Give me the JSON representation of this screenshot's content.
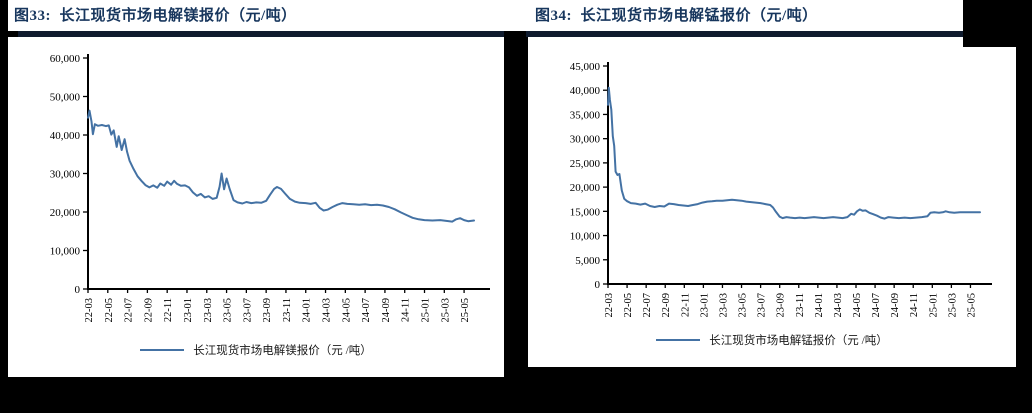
{
  "page": {
    "background_color": "#000000",
    "panel_color": "#ffffff",
    "title_color": "#17365d",
    "rule_color": "#0f1b2e",
    "axis_color": "#000000"
  },
  "chart_data": [
    {
      "type": "line",
      "title": "图33:  长江现货市场电解镁报价（元/吨）",
      "legend": "长江现货市场电解镁报价（元 /吨）",
      "xlabel": "",
      "ylabel": "",
      "ylim": [
        0,
        60000
      ],
      "ytick_step": 10000,
      "ytick_labels": [
        "0",
        "10,000",
        "20,000",
        "30,000",
        "40,000",
        "50,000",
        "60,000"
      ],
      "x_tick_labels": [
        "22-03",
        "22-05",
        "22-07",
        "22-09",
        "22-11",
        "23-01",
        "23-03",
        "23-05",
        "23-07",
        "23-09",
        "23-11",
        "24-01",
        "24-03",
        "24-05",
        "24-07",
        "24-09",
        "24-11",
        "25-01",
        "25-03",
        "25-05"
      ],
      "months_per_tick": 2,
      "x_range_months": [
        0,
        39
      ],
      "grid": false,
      "legend_position": "bottom-center",
      "line_color": "#4472a4",
      "points": [
        [
          0,
          44500
        ],
        [
          0.15,
          46300
        ],
        [
          0.35,
          43500
        ],
        [
          0.5,
          40200
        ],
        [
          0.7,
          42800
        ],
        [
          1,
          42400
        ],
        [
          1.4,
          42600
        ],
        [
          1.8,
          42300
        ],
        [
          2.1,
          42500
        ],
        [
          2.35,
          40100
        ],
        [
          2.6,
          41200
        ],
        [
          2.9,
          36900
        ],
        [
          3.1,
          39700
        ],
        [
          3.4,
          36100
        ],
        [
          3.7,
          38900
        ],
        [
          3.95,
          35600
        ],
        [
          4.2,
          33300
        ],
        [
          4.6,
          31200
        ],
        [
          5,
          29300
        ],
        [
          5.4,
          28100
        ],
        [
          5.8,
          27000
        ],
        [
          6.2,
          26400
        ],
        [
          6.6,
          26900
        ],
        [
          7,
          26300
        ],
        [
          7.3,
          27400
        ],
        [
          7.7,
          26800
        ],
        [
          8,
          27900
        ],
        [
          8.4,
          27100
        ],
        [
          8.7,
          28100
        ],
        [
          9,
          27300
        ],
        [
          9.4,
          26800
        ],
        [
          9.8,
          26900
        ],
        [
          10.2,
          26400
        ],
        [
          10.6,
          25100
        ],
        [
          11,
          24200
        ],
        [
          11.4,
          24700
        ],
        [
          11.8,
          23800
        ],
        [
          12.2,
          24100
        ],
        [
          12.6,
          23400
        ],
        [
          13,
          23700
        ],
        [
          13.3,
          26600
        ],
        [
          13.5,
          30000
        ],
        [
          13.75,
          25900
        ],
        [
          14,
          28700
        ],
        [
          14.3,
          26100
        ],
        [
          14.7,
          23100
        ],
        [
          15.1,
          22500
        ],
        [
          15.6,
          22200
        ],
        [
          16,
          22600
        ],
        [
          16.5,
          22300
        ],
        [
          17,
          22500
        ],
        [
          17.5,
          22400
        ],
        [
          18,
          22900
        ],
        [
          18.4,
          24500
        ],
        [
          18.8,
          26000
        ],
        [
          19.1,
          26500
        ],
        [
          19.5,
          26000
        ],
        [
          19.9,
          24800
        ],
        [
          20.4,
          23400
        ],
        [
          20.9,
          22700
        ],
        [
          21.4,
          22400
        ],
        [
          22,
          22300
        ],
        [
          22.5,
          22100
        ],
        [
          23,
          22400
        ],
        [
          23.4,
          21100
        ],
        [
          23.8,
          20400
        ],
        [
          24.2,
          20600
        ],
        [
          24.7,
          21300
        ],
        [
          25.2,
          21900
        ],
        [
          25.7,
          22300
        ],
        [
          26.2,
          22100
        ],
        [
          26.8,
          22000
        ],
        [
          27.4,
          21900
        ],
        [
          28,
          22000
        ],
        [
          28.6,
          21800
        ],
        [
          29.2,
          21900
        ],
        [
          29.8,
          21700
        ],
        [
          30.4,
          21300
        ],
        [
          31,
          20700
        ],
        [
          31.6,
          19900
        ],
        [
          32.2,
          19200
        ],
        [
          32.8,
          18500
        ],
        [
          33.4,
          18100
        ],
        [
          34,
          17900
        ],
        [
          34.8,
          17800
        ],
        [
          35.6,
          17900
        ],
        [
          36.2,
          17700
        ],
        [
          36.8,
          17500
        ],
        [
          37.2,
          18100
        ],
        [
          37.6,
          18400
        ],
        [
          38,
          17900
        ],
        [
          38.4,
          17600
        ],
        [
          39,
          17800
        ]
      ]
    },
    {
      "type": "line",
      "title": "图34:  长江现货市场电解锰报价（元/吨）",
      "legend": "长江现货市场电解锰报价（元 /吨）",
      "xlabel": "",
      "ylabel": "",
      "ylim": [
        0,
        45000
      ],
      "ytick_step": 5000,
      "ytick_labels": [
        "0",
        "5,000",
        "10,000",
        "15,000",
        "20,000",
        "25,000",
        "30,000",
        "35,000",
        "40,000",
        "45,000"
      ],
      "x_tick_labels": [
        "22-03",
        "22-05",
        "22-07",
        "22-09",
        "22-11",
        "23-01",
        "23-03",
        "23-05",
        "23-07",
        "23-09",
        "23-11",
        "24-01",
        "24-03",
        "24-05",
        "24-07",
        "24-09",
        "24-11",
        "25-01",
        "25-03",
        "25-05"
      ],
      "months_per_tick": 2,
      "x_range_months": [
        0,
        39
      ],
      "grid": false,
      "legend_position": "bottom-center",
      "line_color": "#4472a4",
      "points": [
        [
          0,
          37000
        ],
        [
          0.08,
          40500
        ],
        [
          0.2,
          38000
        ],
        [
          0.35,
          36000
        ],
        [
          0.5,
          30500
        ],
        [
          0.65,
          28500
        ],
        [
          0.8,
          23200
        ],
        [
          1,
          22500
        ],
        [
          1.2,
          22700
        ],
        [
          1.45,
          19300
        ],
        [
          1.7,
          17600
        ],
        [
          2,
          17100
        ],
        [
          2.4,
          16700
        ],
        [
          2.9,
          16600
        ],
        [
          3.4,
          16400
        ],
        [
          3.9,
          16600
        ],
        [
          4.4,
          16100
        ],
        [
          4.9,
          15900
        ],
        [
          5.4,
          16100
        ],
        [
          5.9,
          16000
        ],
        [
          6.4,
          16600
        ],
        [
          6.9,
          16500
        ],
        [
          7.4,
          16300
        ],
        [
          7.9,
          16200
        ],
        [
          8.4,
          16100
        ],
        [
          8.9,
          16300
        ],
        [
          9.4,
          16500
        ],
        [
          9.9,
          16800
        ],
        [
          10.4,
          17000
        ],
        [
          10.9,
          17100
        ],
        [
          11.4,
          17200
        ],
        [
          12,
          17200
        ],
        [
          12.5,
          17300
        ],
        [
          13,
          17400
        ],
        [
          13.5,
          17300
        ],
        [
          14,
          17200
        ],
        [
          14.5,
          17000
        ],
        [
          15,
          16900
        ],
        [
          15.5,
          16800
        ],
        [
          16,
          16700
        ],
        [
          16.5,
          16500
        ],
        [
          17,
          16300
        ],
        [
          17.3,
          15800
        ],
        [
          17.6,
          14900
        ],
        [
          18,
          13900
        ],
        [
          18.3,
          13600
        ],
        [
          18.7,
          13800
        ],
        [
          19.1,
          13700
        ],
        [
          19.6,
          13600
        ],
        [
          20.1,
          13700
        ],
        [
          20.6,
          13600
        ],
        [
          21.1,
          13700
        ],
        [
          21.6,
          13800
        ],
        [
          22.1,
          13700
        ],
        [
          22.6,
          13600
        ],
        [
          23.1,
          13700
        ],
        [
          23.6,
          13800
        ],
        [
          24.1,
          13700
        ],
        [
          24.6,
          13600
        ],
        [
          25.1,
          13800
        ],
        [
          25.5,
          14500
        ],
        [
          25.8,
          14300
        ],
        [
          26.1,
          15000
        ],
        [
          26.4,
          15400
        ],
        [
          26.7,
          15100
        ],
        [
          27,
          15200
        ],
        [
          27.4,
          14700
        ],
        [
          27.8,
          14400
        ],
        [
          28.2,
          14100
        ],
        [
          28.6,
          13700
        ],
        [
          29,
          13500
        ],
        [
          29.4,
          13800
        ],
        [
          29.9,
          13700
        ],
        [
          30.5,
          13600
        ],
        [
          31.1,
          13700
        ],
        [
          31.7,
          13600
        ],
        [
          32.3,
          13700
        ],
        [
          32.9,
          13800
        ],
        [
          33.5,
          14000
        ],
        [
          33.8,
          14700
        ],
        [
          34.2,
          14800
        ],
        [
          34.7,
          14700
        ],
        [
          35.1,
          14800
        ],
        [
          35.4,
          15000
        ],
        [
          35.8,
          14800
        ],
        [
          36.3,
          14700
        ],
        [
          36.9,
          14800
        ],
        [
          37.5,
          14800
        ],
        [
          38.2,
          14800
        ],
        [
          39,
          14800
        ]
      ]
    }
  ]
}
